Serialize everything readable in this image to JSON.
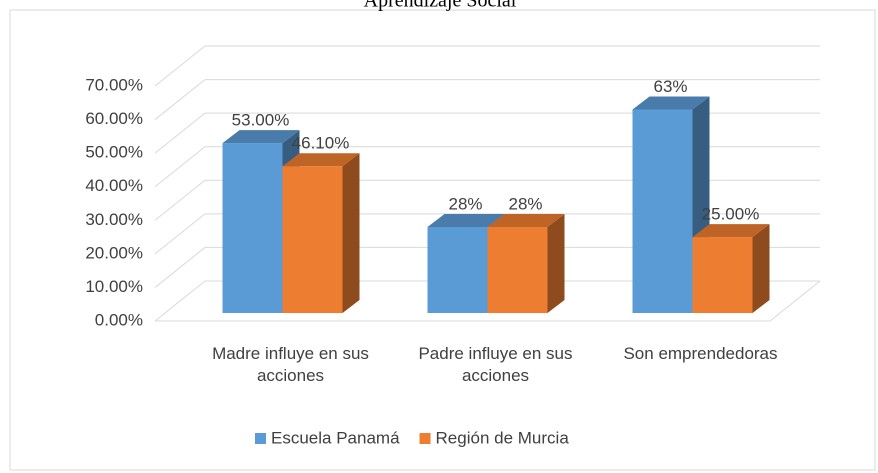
{
  "chart_data": {
    "type": "bar3d",
    "title": "Aprendizaje Social",
    "categories": [
      "Madre influye en sus acciones",
      "Padre influye en sus acciones",
      "Son emprendedoras"
    ],
    "series": [
      {
        "name": "Escuela Panamá",
        "color": "#5b9bd5",
        "values": [
          53,
          28,
          63
        ],
        "value_labels": [
          "53.00%",
          "28%",
          "63%"
        ]
      },
      {
        "name": "Región de Murcia",
        "color": "#ed7d31",
        "values": [
          46.1,
          28,
          25
        ],
        "value_labels": [
          "46.10%",
          "28%",
          "25.00%"
        ]
      }
    ],
    "ylim": [
      0,
      70
    ],
    "yticks": [
      {
        "value": 0,
        "label": "0.00%"
      },
      {
        "value": 10,
        "label": "10.00%"
      },
      {
        "value": 20,
        "label": "20.00%"
      },
      {
        "value": 30,
        "label": "30.00%"
      },
      {
        "value": 40,
        "label": "40.00%"
      },
      {
        "value": 50,
        "label": "50.00%"
      },
      {
        "value": 60,
        "label": "60.00%"
      },
      {
        "value": 70,
        "label": "70.00%"
      }
    ],
    "grid": true,
    "legend": "bottom"
  }
}
